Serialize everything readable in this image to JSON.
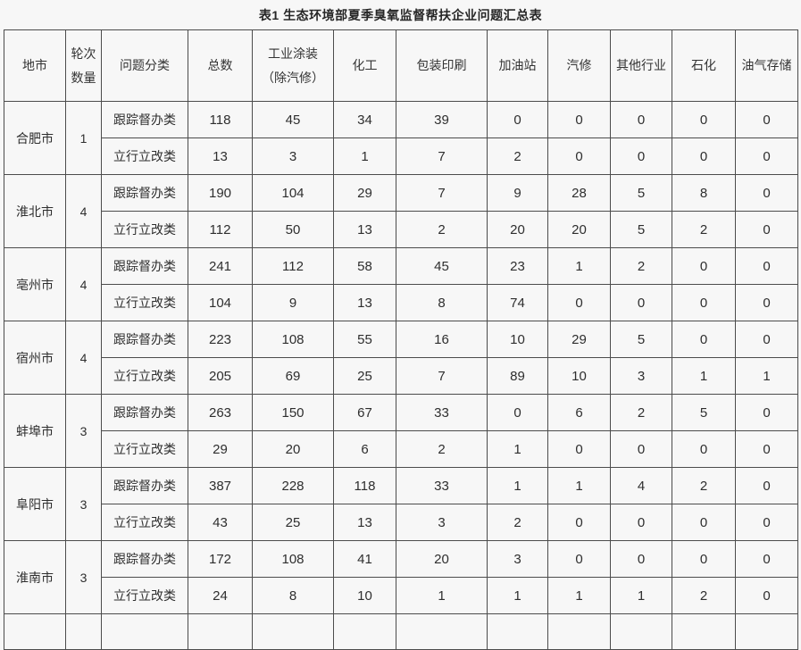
{
  "title": "表1 生态环境部夏季臭氧监督帮扶企业问题汇总表",
  "colors": {
    "background": "#f7f7f7",
    "border": "#4c4c4c",
    "text": "#2e2e2e"
  },
  "table": {
    "columns": [
      {
        "id": "city",
        "lines": [
          "地市"
        ]
      },
      {
        "id": "rounds",
        "lines": [
          "轮次",
          "数量"
        ]
      },
      {
        "id": "category",
        "lines": [
          "问题分类"
        ]
      },
      {
        "id": "total",
        "lines": [
          "总数"
        ]
      },
      {
        "id": "industrial-coating",
        "lines": [
          "工业涂装",
          "（除汽修）"
        ]
      },
      {
        "id": "chemical",
        "lines": [
          "化工"
        ]
      },
      {
        "id": "packaging-printing",
        "lines": [
          "包装印刷"
        ]
      },
      {
        "id": "gas-station",
        "lines": [
          "加油站"
        ]
      },
      {
        "id": "auto-repair",
        "lines": [
          "汽修"
        ]
      },
      {
        "id": "other-industries",
        "lines": [
          "其他行业"
        ]
      },
      {
        "id": "petrochemical",
        "lines": [
          "石化"
        ]
      },
      {
        "id": "oil-gas-storage",
        "lines": [
          "油气存储"
        ]
      }
    ],
    "cities": [
      {
        "name": "合肥市",
        "rounds": "1",
        "rows": [
          {
            "category": "跟踪督办类",
            "values": [
              "118",
              "45",
              "34",
              "39",
              "0",
              "0",
              "0",
              "0",
              "0"
            ]
          },
          {
            "category": "立行立改类",
            "values": [
              "13",
              "3",
              "1",
              "7",
              "2",
              "0",
              "0",
              "0",
              "0"
            ]
          }
        ]
      },
      {
        "name": "淮北市",
        "rounds": "4",
        "rows": [
          {
            "category": "跟踪督办类",
            "values": [
              "190",
              "104",
              "29",
              "7",
              "9",
              "28",
              "5",
              "8",
              "0"
            ]
          },
          {
            "category": "立行立改类",
            "values": [
              "112",
              "50",
              "13",
              "2",
              "20",
              "20",
              "5",
              "2",
              "0"
            ]
          }
        ]
      },
      {
        "name": "亳州市",
        "rounds": "4",
        "rows": [
          {
            "category": "跟踪督办类",
            "values": [
              "241",
              "112",
              "58",
              "45",
              "23",
              "1",
              "2",
              "0",
              "0"
            ]
          },
          {
            "category": "立行立改类",
            "values": [
              "104",
              "9",
              "13",
              "8",
              "74",
              "0",
              "0",
              "0",
              "0"
            ]
          }
        ]
      },
      {
        "name": "宿州市",
        "rounds": "4",
        "rows": [
          {
            "category": "跟踪督办类",
            "values": [
              "223",
              "108",
              "55",
              "16",
              "10",
              "29",
              "5",
              "0",
              "0"
            ]
          },
          {
            "category": "立行立改类",
            "values": [
              "205",
              "69",
              "25",
              "7",
              "89",
              "10",
              "3",
              "1",
              "1"
            ]
          }
        ]
      },
      {
        "name": "蚌埠市",
        "rounds": "3",
        "rows": [
          {
            "category": "跟踪督办类",
            "values": [
              "263",
              "150",
              "67",
              "33",
              "0",
              "6",
              "2",
              "5",
              "0"
            ]
          },
          {
            "category": "立行立改类",
            "values": [
              "29",
              "20",
              "6",
              "2",
              "1",
              "0",
              "0",
              "0",
              "0"
            ]
          }
        ]
      },
      {
        "name": "阜阳市",
        "rounds": "3",
        "rows": [
          {
            "category": "跟踪督办类",
            "values": [
              "387",
              "228",
              "118",
              "33",
              "1",
              "1",
              "4",
              "2",
              "0"
            ]
          },
          {
            "category": "立行立改类",
            "values": [
              "43",
              "25",
              "13",
              "3",
              "2",
              "0",
              "0",
              "0",
              "0"
            ]
          }
        ]
      },
      {
        "name": "淮南市",
        "rounds": "3",
        "rows": [
          {
            "category": "跟踪督办类",
            "values": [
              "172",
              "108",
              "41",
              "20",
              "3",
              "0",
              "0",
              "0",
              "0"
            ]
          },
          {
            "category": "立行立改类",
            "values": [
              "24",
              "8",
              "10",
              "1",
              "1",
              "1",
              "1",
              "2",
              "0"
            ]
          }
        ]
      }
    ]
  }
}
